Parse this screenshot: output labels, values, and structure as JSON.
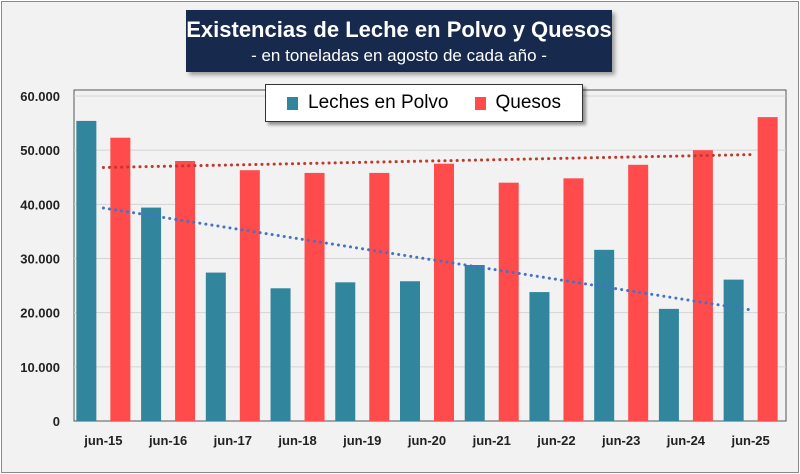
{
  "chart_data": {
    "type": "bar",
    "title": "Existencias de Leche en Polvo y Quesos",
    "subtitle": "- en toneladas en agosto de cada año -",
    "categories": [
      "jun-15",
      "jun-16",
      "jun-17",
      "jun-18",
      "jun-19",
      "jun-20",
      "jun-21",
      "jun-22",
      "jun-23",
      "jun-24",
      "jun-25"
    ],
    "series": [
      {
        "name": "Leches en Polvo",
        "color": "#31859c",
        "values": [
          55400,
          39400,
          27400,
          24500,
          25600,
          25800,
          28800,
          23800,
          31600,
          20700,
          26100
        ]
      },
      {
        "name": "Quesos",
        "color": "#ff4b4b",
        "values": [
          52300,
          48000,
          46300,
          45800,
          45800,
          47500,
          44000,
          44800,
          47300,
          50000,
          56100
        ]
      }
    ],
    "trendlines": [
      {
        "series": "Leches en Polvo",
        "type": "linear",
        "style": "dotted",
        "color": "#4472c4"
      },
      {
        "series": "Quesos",
        "type": "linear",
        "style": "dotted",
        "color": "#c0392b"
      }
    ],
    "ylim": [
      0,
      60000
    ],
    "yticks": [
      "0",
      "10.000",
      "20.000",
      "30.000",
      "40.000",
      "50.000",
      "60.000"
    ],
    "grid": true,
    "legend": "top-center"
  }
}
